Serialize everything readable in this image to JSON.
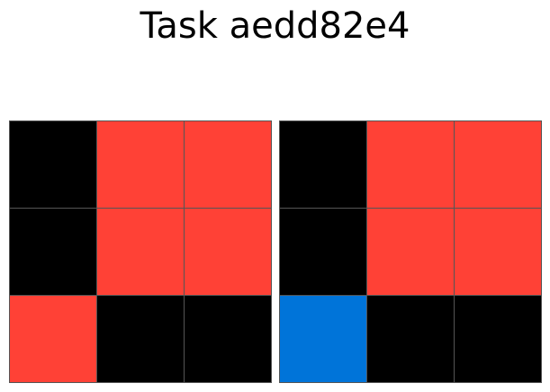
{
  "title": "Task aedd82e4",
  "palette": {
    "0": "#000000",
    "1": "#0074D9",
    "2": "#FF4136"
  },
  "grids": [
    {
      "name": "input",
      "cells": [
        [
          0,
          2,
          2
        ],
        [
          0,
          2,
          2
        ],
        [
          2,
          0,
          0
        ]
      ]
    },
    {
      "name": "output",
      "cells": [
        [
          0,
          2,
          2
        ],
        [
          0,
          2,
          2
        ],
        [
          1,
          0,
          0
        ]
      ]
    }
  ]
}
